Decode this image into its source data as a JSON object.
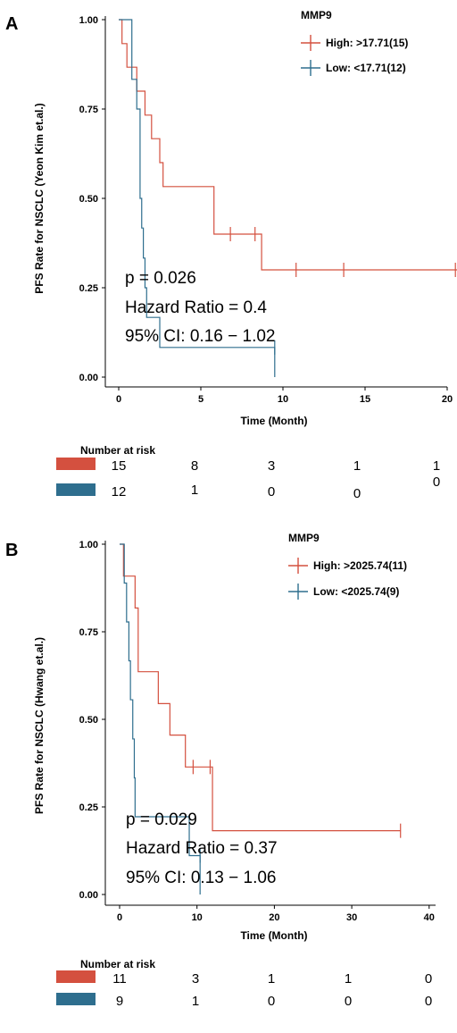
{
  "colors": {
    "high": "#D4503F",
    "low": "#2E6E8E",
    "axis": "#000000"
  },
  "chart_data": [
    {
      "panel_label": "A",
      "type": "line",
      "ylabel": "PFS Rate for NSCLC (Yeon Kim et.al.)",
      "xlabel": "Time (Month)",
      "xlim": [
        0,
        21
      ],
      "ylim": [
        0,
        1
      ],
      "xticks": [
        0,
        5,
        10,
        15,
        20
      ],
      "yticks": [
        "0.00",
        "0.25",
        "0.50",
        "0.75",
        "1.00"
      ],
      "legend_title": "MMP9",
      "legend_position": "top-right",
      "series": [
        {
          "name": "High: >17.71(15)",
          "color_key": "high",
          "steps": [
            [
              0,
              1.0
            ],
            [
              0.2,
              0.933
            ],
            [
              0.5,
              0.867
            ],
            [
              1.1,
              0.8
            ],
            [
              1.6,
              0.733
            ],
            [
              2.0,
              0.667
            ],
            [
              2.5,
              0.6
            ],
            [
              2.7,
              0.533
            ],
            [
              3.0,
              0.533
            ],
            [
              3.0,
              0.533
            ],
            [
              5.7,
              0.533
            ],
            [
              5.8,
              0.4
            ],
            [
              8.6,
              0.4
            ],
            [
              8.7,
              0.3
            ],
            [
              20.6,
              0.3
            ]
          ],
          "km_step_times": [
            0,
            0.2,
            0.5,
            1.1,
            1.6,
            2.0,
            2.5,
            2.7,
            5.8,
            8.7
          ],
          "km_step_values": [
            1.0,
            0.933,
            0.867,
            0.8,
            0.733,
            0.667,
            0.6,
            0.533,
            0.4,
            0.3
          ],
          "censor_times": [
            6.8,
            8.3,
            10.8,
            13.7,
            20.5
          ]
        },
        {
          "name": "Low: <17.71(12)",
          "color_key": "low",
          "km_step_times": [
            0,
            0.8,
            1.1,
            1.3,
            1.4,
            1.5,
            1.6,
            1.7,
            2.5,
            3.0
          ],
          "km_step_values": [
            1.0,
            0.833,
            0.75,
            0.5,
            0.417,
            0.333,
            0.25,
            0.167,
            0.083,
            0.083
          ],
          "censor_times": [
            9.5
          ],
          "end_time": 9.5,
          "end_drop_to": 0.0
        }
      ],
      "annotations": [
        "p = 0.026",
        "Hazard Ratio = 0.4",
        "95% CI: 0.16 − 1.02"
      ],
      "risk_table": {
        "title": "Number at risk",
        "rows": [
          {
            "color_key": "high",
            "values": [
              "15",
              "8",
              "3",
              "1",
              "1"
            ]
          },
          {
            "color_key": "low",
            "values": [
              "12",
              "1",
              "0",
              "0",
              "0"
            ]
          }
        ]
      }
    },
    {
      "panel_label": "B",
      "type": "line",
      "ylabel": "PFS Rate for NSCLC (Hwang et.al.)",
      "xlabel": "Time (Month)",
      "xlim": [
        0,
        41
      ],
      "ylim": [
        0,
        1
      ],
      "xticks": [
        0,
        10,
        20,
        30,
        40
      ],
      "yticks": [
        "0.00",
        "0.25",
        "0.50",
        "0.75",
        "1.00"
      ],
      "legend_title": "MMP9",
      "legend_position": "top-right",
      "series": [
        {
          "name": "High: >2025.74(11)",
          "color_key": "high",
          "km_step_times": [
            0,
            0.5,
            2.0,
            2.4,
            5.0,
            6.5,
            8.5,
            12.0
          ],
          "km_step_values": [
            1.0,
            0.909,
            0.818,
            0.636,
            0.545,
            0.455,
            0.364,
            0.182
          ],
          "censor_times": [
            9.5,
            11.7,
            36.3
          ],
          "end_time": 36.3
        },
        {
          "name": "Low: <2025.74(9)",
          "color_key": "low",
          "km_step_times": [
            0,
            0.6,
            0.9,
            1.2,
            1.4,
            1.7,
            1.9,
            2.0,
            9.0
          ],
          "km_step_values": [
            1.0,
            0.889,
            0.778,
            0.667,
            0.556,
            0.444,
            0.333,
            0.222,
            0.111
          ],
          "censor_times": [
            10.4
          ],
          "end_time": 10.4,
          "end_drop_to": 0.0
        }
      ],
      "annotations": [
        "p = 0.029",
        "Hazard Ratio = 0.37",
        "95% CI: 0.13 − 1.06"
      ],
      "risk_table": {
        "title": "Number at risk",
        "rows": [
          {
            "color_key": "high",
            "values": [
              "11",
              "3",
              "1",
              "1",
              "0"
            ]
          },
          {
            "color_key": "low",
            "values": [
              "9",
              "1",
              "0",
              "0",
              "0"
            ]
          }
        ]
      }
    }
  ]
}
